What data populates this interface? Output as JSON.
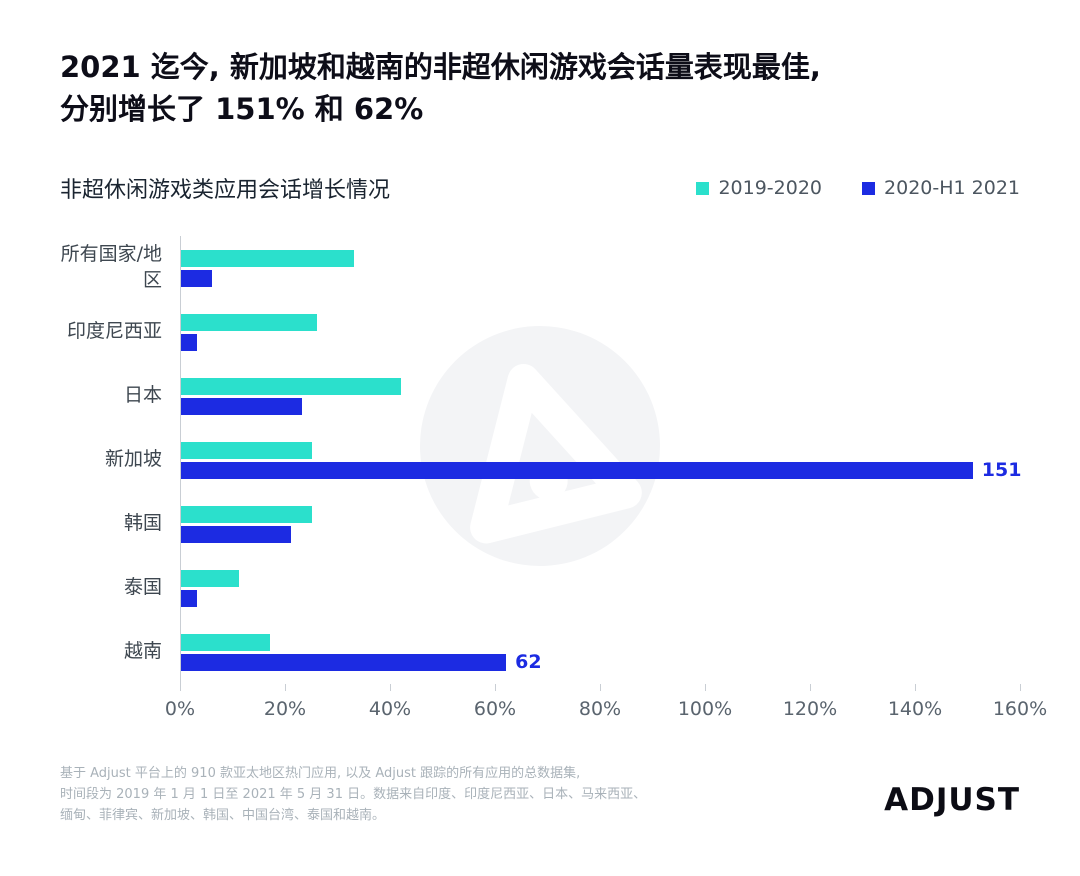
{
  "header": {
    "title_line1": "2021 迄今, 新加坡和越南的非超休闲游戏会话量表现最佳,",
    "title_line2": "分别增长了 151% 和 62%"
  },
  "chart": {
    "title": "非超休闲游戏类应用会话增长情况"
  },
  "chart_data": {
    "type": "bar",
    "orientation": "horizontal",
    "title": "非超休闲游戏类应用会话增长情况",
    "categories": [
      "所有国家/地区",
      "印度尼西亚",
      "日本",
      "新加坡",
      "韩国",
      "泰国",
      "越南"
    ],
    "series": [
      {
        "name": "2019-2020",
        "color": "#2be0cc",
        "values": [
          33,
          26,
          42,
          25,
          25,
          11,
          17
        ],
        "labels": [
          "",
          "",
          "",
          "",
          "",
          "",
          ""
        ]
      },
      {
        "name": "2020-H1 2021",
        "color": "#1c2be2",
        "values": [
          6,
          3,
          23,
          151,
          21,
          3,
          62
        ],
        "labels": [
          "",
          "",
          "",
          "151",
          "",
          "",
          "62"
        ]
      }
    ],
    "xlim": [
      0,
      160
    ],
    "x_ticks": [
      "0%",
      "20%",
      "40%",
      "60%",
      "80%",
      "100%",
      "120%",
      "140%",
      "160%"
    ],
    "legend_position": "top-right",
    "grid": false
  },
  "footnote": {
    "line1": "基于 Adjust 平台上的 910 款亚太地区热门应用, 以及 Adjust 跟踪的所有应用的总数据集,",
    "line2": "时间段为 2019 年 1 月 1 日至 2021 年 5 月 31 日。数据来自印度、印度尼西亚、日本、马来西亚、",
    "line3": "缅甸、菲律宾、新加坡、韩国、中国台湾、泰国和越南。"
  },
  "logo": {
    "text": "ADJUST"
  },
  "colors": {
    "cyan": "#2be0cc",
    "blue": "#1c2be2",
    "title": "#0d0d18",
    "axis_text": "#5a646e",
    "footnote": "#a9b2b9"
  }
}
